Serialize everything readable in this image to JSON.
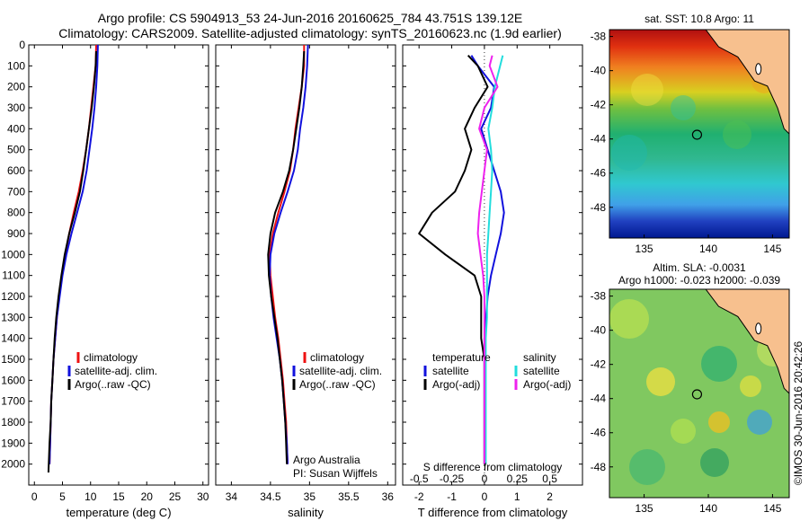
{
  "header": {
    "line1": "Argo profile: CS 5904913_53 24-Jun-2016 20160625_784 43.751S 139.12E",
    "line2": "Climatology: CARS2009. Satellite-adjusted climatology: synTS_20160623.nc (1.9d earlier)"
  },
  "credit": {
    "line1": "Argo Australia",
    "line2": "PI: Susan Wijffels"
  },
  "side_stamp": "©IMOS 30-Jun-2016 20:42:26",
  "colors": {
    "climatology": "#ee1111",
    "satellite": "#1111dd",
    "argo": "#000000",
    "salinity_satellite": "#22dddd",
    "salinity_argo": "#ee22ee",
    "land": "#f7c08e"
  },
  "chart_data": [
    {
      "type": "line",
      "id": "temperature",
      "xlabel": "temperature (deg C)",
      "xlim": [
        -1,
        31
      ],
      "ylim": [
        0,
        2100
      ],
      "xticks": [
        0,
        5,
        10,
        15,
        20,
        25,
        30
      ],
      "yticks": [
        0,
        100,
        200,
        300,
        400,
        500,
        600,
        700,
        800,
        900,
        1000,
        1100,
        1200,
        1300,
        1400,
        1500,
        1600,
        1700,
        1800,
        1900,
        2000
      ],
      "legend": [
        "climatology",
        "satellite-adj. clim.",
        "Argo(..raw -QC)"
      ],
      "series": [
        {
          "name": "climatology",
          "color": "#ee1111",
          "x": [
            11.0,
            10.9,
            10.5,
            10.1,
            9.7,
            9.2,
            8.6,
            7.9,
            7.0,
            6.2,
            5.5,
            4.9,
            4.4,
            4.0,
            3.7,
            3.4,
            3.2,
            3.0,
            2.9,
            2.8,
            2.7
          ],
          "y": [
            0,
            100,
            200,
            300,
            400,
            500,
            600,
            700,
            800,
            900,
            1000,
            1100,
            1200,
            1300,
            1400,
            1500,
            1600,
            1700,
            1800,
            1900,
            2000
          ]
        },
        {
          "name": "satellite-adj. clim.",
          "color": "#1111dd",
          "x": [
            11.3,
            11.2,
            11.0,
            10.7,
            10.3,
            9.8,
            9.3,
            8.6,
            7.6,
            6.6,
            5.7,
            5.0,
            4.5,
            4.0,
            3.7,
            3.4,
            3.2,
            3.0,
            2.9,
            2.8,
            2.7
          ],
          "y": [
            0,
            100,
            200,
            300,
            400,
            500,
            600,
            700,
            800,
            900,
            1000,
            1100,
            1200,
            1300,
            1400,
            1500,
            1600,
            1700,
            1800,
            1900,
            2000
          ]
        },
        {
          "name": "Argo(..raw -QC)",
          "color": "#000000",
          "x": [
            11.0,
            10.9,
            10.6,
            10.2,
            9.7,
            9.2,
            8.7,
            8.1,
            7.2,
            6.2,
            5.4,
            4.8,
            4.3,
            3.9,
            3.6,
            3.4,
            3.2,
            3.0,
            2.9,
            2.7,
            2.5
          ],
          "y": [
            30,
            100,
            200,
            300,
            400,
            500,
            600,
            700,
            800,
            900,
            1000,
            1100,
            1200,
            1300,
            1400,
            1500,
            1600,
            1700,
            1800,
            1900,
            2040
          ]
        }
      ]
    },
    {
      "type": "line",
      "id": "salinity",
      "xlabel": "salinity",
      "xlim": [
        33.8,
        36.1
      ],
      "ylim": [
        0,
        2100
      ],
      "xticks": [
        34,
        34.5,
        35,
        35.5,
        36
      ],
      "legend": [
        "climatology",
        "satellite-adj. clim.",
        "Argo(..raw -QC)"
      ],
      "series": [
        {
          "name": "climatology",
          "color": "#ee1111",
          "x": [
            34.93,
            34.93,
            34.9,
            34.86,
            34.82,
            34.79,
            34.75,
            34.68,
            34.6,
            34.53,
            34.49,
            34.5,
            34.53,
            34.56,
            34.6,
            34.63,
            34.66,
            34.68,
            34.7,
            34.71,
            34.72
          ],
          "y": [
            0,
            100,
            200,
            300,
            400,
            500,
            600,
            700,
            800,
            900,
            1000,
            1100,
            1200,
            1300,
            1400,
            1500,
            1600,
            1700,
            1800,
            1900,
            2000
          ]
        },
        {
          "name": "satellite-adj. clim.",
          "color": "#1111dd",
          "x": [
            34.98,
            34.97,
            34.95,
            34.92,
            34.88,
            34.85,
            34.8,
            34.72,
            34.63,
            34.55,
            34.5,
            34.49,
            34.51,
            34.54,
            34.58,
            34.62,
            34.65,
            34.67,
            34.69,
            34.71,
            34.72
          ],
          "y": [
            0,
            100,
            200,
            300,
            400,
            500,
            600,
            700,
            800,
            900,
            1000,
            1100,
            1200,
            1300,
            1400,
            1500,
            1600,
            1700,
            1800,
            1900,
            2000
          ]
        },
        {
          "name": "Argo(..raw -QC)",
          "color": "#000000",
          "x": [
            34.93,
            34.92,
            34.9,
            34.87,
            34.83,
            34.79,
            34.74,
            34.66,
            34.56,
            34.5,
            34.47,
            34.48,
            34.51,
            34.55,
            34.59,
            34.62,
            34.65,
            34.67,
            34.69,
            34.7,
            34.71
          ],
          "y": [
            30,
            100,
            200,
            300,
            400,
            500,
            600,
            700,
            800,
            900,
            1000,
            1100,
            1200,
            1300,
            1400,
            1500,
            1600,
            1700,
            1800,
            1900,
            2000
          ]
        }
      ]
    },
    {
      "type": "line",
      "id": "differences",
      "xlabel": "T difference from climatology",
      "top_label": "S difference from climatology",
      "xlim": [
        -2.5,
        3
      ],
      "ylim": [
        0,
        2100
      ],
      "xticks": [
        -2,
        -1,
        0,
        1,
        2
      ],
      "xtick_labels": [
        "-2",
        "-1",
        "0",
        "1",
        "2"
      ],
      "s_ticks": [
        -0.5,
        -0.25,
        0,
        0.25,
        0.5
      ],
      "s_tick_labels": [
        "-0.5",
        "-0.25",
        "0",
        "0.25",
        "0.5"
      ],
      "legend_temperature": {
        "header": "temperature",
        "entries": [
          "satellite",
          "Argo(-adj)"
        ]
      },
      "legend_salinity": {
        "header": "salinity",
        "entries": [
          "satellite",
          "Argo(-adj)"
        ]
      },
      "series": [
        {
          "name": "temperature satellite",
          "color": "#1111dd",
          "x": [
            -0.4,
            -0.2,
            0.3,
            0.2,
            -0.1,
            0.1,
            0.3,
            0.5,
            0.6,
            0.5,
            0.35,
            0.2,
            0.1,
            0.05,
            0.0,
            0.0,
            0.0,
            0.0,
            0.0,
            0.0,
            0.0
          ],
          "y": [
            50,
            100,
            200,
            300,
            400,
            500,
            600,
            700,
            800,
            900,
            1000,
            1100,
            1200,
            1300,
            1400,
            1500,
            1600,
            1700,
            1800,
            1900,
            2000
          ]
        },
        {
          "name": "temperature Argo(-adj)",
          "color": "#000000",
          "x": [
            -0.5,
            -0.2,
            0.1,
            -0.3,
            -0.6,
            -0.4,
            -0.6,
            -0.9,
            -1.6,
            -2.0,
            -1.2,
            -0.3,
            -0.1,
            -0.1,
            -0.1,
            0.0,
            0.0,
            0.0,
            0.0,
            0.0,
            0.0
          ],
          "y": [
            50,
            100,
            200,
            300,
            400,
            500,
            600,
            700,
            800,
            900,
            1000,
            1100,
            1200,
            1300,
            1400,
            1500,
            1600,
            1700,
            1800,
            1900,
            2000
          ]
        },
        {
          "name": "salinity satellite",
          "color": "#22dddd",
          "x": [
            0.14,
            0.12,
            0.08,
            0.06,
            0.03,
            0.05,
            0.06,
            0.05,
            0.04,
            0.03,
            0.02,
            0.02,
            0.02,
            0.02,
            0.01,
            0.01,
            0.01,
            0.01,
            0.01,
            0.01,
            0.01
          ],
          "y": [
            50,
            100,
            200,
            300,
            400,
            500,
            600,
            700,
            800,
            900,
            1000,
            1100,
            1200,
            1300,
            1400,
            1500,
            1600,
            1700,
            1800,
            1900,
            2000
          ]
        },
        {
          "name": "salinity Argo(-adj)",
          "color": "#ee22ee",
          "x": [
            0.06,
            0.04,
            0.1,
            0.0,
            -0.04,
            0.02,
            0.0,
            -0.02,
            -0.04,
            -0.05,
            -0.03,
            -0.01,
            0.0,
            0.0,
            0.0,
            0.0,
            0.0,
            0.0,
            0.0,
            0.0,
            0.0
          ],
          "y": [
            50,
            100,
            200,
            300,
            400,
            500,
            600,
            700,
            800,
            900,
            1000,
            1100,
            1200,
            1300,
            1400,
            1500,
            1600,
            1700,
            1800,
            1900,
            2000
          ]
        }
      ]
    },
    {
      "type": "heatmap",
      "id": "sst_map",
      "title": "sat. SST: 10.8 Argo: 11",
      "xlim": [
        132.3,
        146.3
      ],
      "ylim": [
        -49.8,
        -37.6
      ],
      "xticks": [
        135,
        140,
        145
      ],
      "yticks": [
        -38,
        -40,
        -42,
        -44,
        -46,
        -48
      ],
      "argo_position": {
        "lon": 139.12,
        "lat": -43.751
      }
    },
    {
      "type": "heatmap",
      "id": "sla_map",
      "title": "Altim. SLA: -0.0031",
      "subtitle": "Argo h1000: -0.023 h2000: -0.039",
      "xlim": [
        132.3,
        146.3
      ],
      "ylim": [
        -49.8,
        -37.6
      ],
      "xticks": [
        135,
        140,
        145
      ],
      "yticks": [
        -38,
        -40,
        -42,
        -44,
        -46,
        -48
      ],
      "argo_position": {
        "lon": 139.12,
        "lat": -43.751
      }
    }
  ]
}
